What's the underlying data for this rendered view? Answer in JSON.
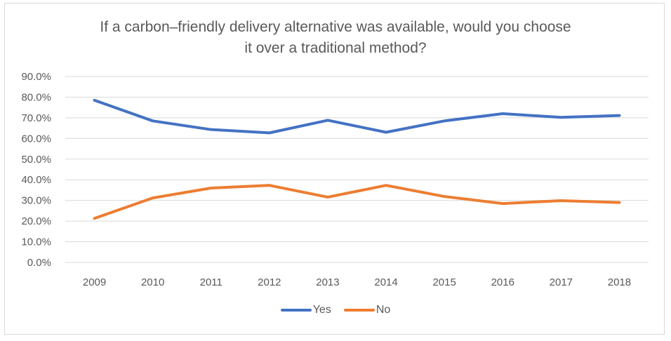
{
  "chart_data": {
    "type": "line",
    "title": "If a carbon–friendly delivery alternative was available, would you choose it over a traditional method?",
    "title_lines": [
      "If a carbon–friendly delivery alternative was available, would you choose",
      "it over a traditional method?"
    ],
    "xlabel": "",
    "ylabel": "",
    "categories": [
      "2009",
      "2010",
      "2011",
      "2012",
      "2013",
      "2014",
      "2015",
      "2016",
      "2017",
      "2018"
    ],
    "series": [
      {
        "name": "Yes",
        "color": "#4472c4",
        "values": [
          78.5,
          68.5,
          64.3,
          62.7,
          68.8,
          63.0,
          68.5,
          72.0,
          70.2,
          71.1
        ]
      },
      {
        "name": "No",
        "color": "#ed7d31",
        "values": [
          21.3,
          31.2,
          36.0,
          37.3,
          31.6,
          37.3,
          31.9,
          28.5,
          29.9,
          29.0
        ]
      }
    ],
    "ylim": [
      0,
      90
    ],
    "yticks": [
      0,
      10,
      20,
      30,
      40,
      50,
      60,
      70,
      80,
      90
    ],
    "ytick_labels": [
      "0.0%",
      "10.0%",
      "20.0%",
      "30.0%",
      "40.0%",
      "50.0%",
      "60.0%",
      "70.0%",
      "80.0%",
      "90.0%"
    ],
    "grid": true,
    "legend_position": "bottom"
  }
}
